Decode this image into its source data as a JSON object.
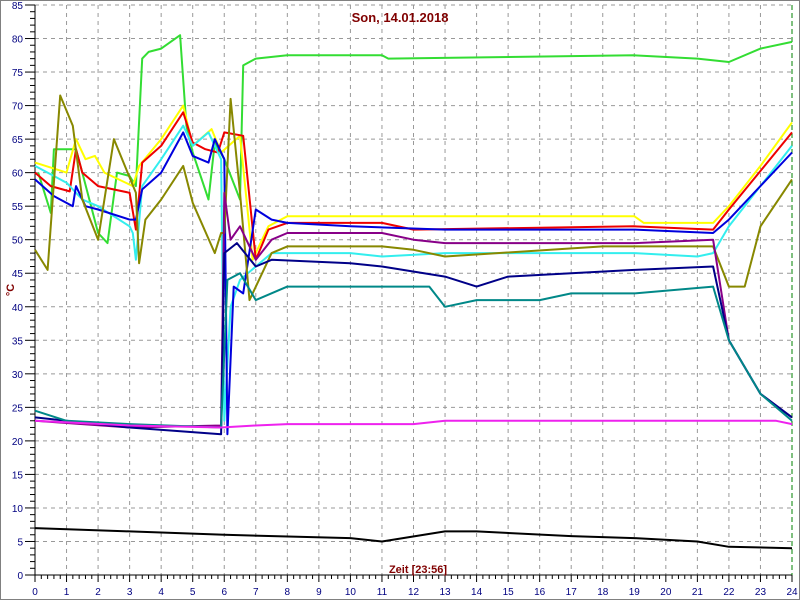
{
  "chart_data": {
    "type": "line",
    "title": "Son, 14.01.2018",
    "xlabel": "Zeit [23:56]",
    "ylabel": "°C",
    "xlim": [
      0,
      24
    ],
    "ylim": [
      0,
      85
    ],
    "xticks": [
      0,
      1,
      2,
      3,
      4,
      5,
      6,
      7,
      8,
      9,
      10,
      11,
      12,
      13,
      14,
      15,
      16,
      17,
      18,
      19,
      20,
      21,
      22,
      23,
      24
    ],
    "yticks": [
      0,
      5,
      10,
      15,
      20,
      25,
      30,
      35,
      40,
      45,
      50,
      55,
      60,
      65,
      70,
      75,
      80,
      85
    ],
    "grid": true,
    "current_time_marker": 24,
    "colors": {
      "title": "#800000",
      "tick_labels": "#000080",
      "grid": "#999999",
      "frame": "#808080",
      "marker": "#008000"
    },
    "series": [
      {
        "color": "#33dd33",
        "points": [
          [
            0.1,
            60
          ],
          [
            0.5,
            54
          ],
          [
            0.6,
            63.5
          ],
          [
            1.3,
            63.5
          ],
          [
            1.5,
            60
          ],
          [
            2,
            51
          ],
          [
            2.3,
            49.5
          ],
          [
            2.6,
            60
          ],
          [
            3.0,
            59.5
          ],
          [
            3.2,
            58
          ],
          [
            3.4,
            77
          ],
          [
            3.6,
            78
          ],
          [
            4.0,
            78.5
          ],
          [
            4.6,
            80.5
          ],
          [
            4.8,
            67
          ],
          [
            5.0,
            63
          ],
          [
            5.5,
            56
          ],
          [
            5.7,
            64.5
          ],
          [
            6.0,
            62
          ],
          [
            6.5,
            56
          ],
          [
            6.6,
            76
          ],
          [
            7.0,
            77
          ],
          [
            8,
            77.5
          ],
          [
            11,
            77.5
          ],
          [
            11.2,
            77
          ],
          [
            19,
            77.5
          ],
          [
            21,
            77
          ],
          [
            22,
            76.5
          ],
          [
            23,
            78.5
          ],
          [
            24,
            79.5
          ]
        ]
      },
      {
        "color": "#ffff00",
        "points": [
          [
            0,
            61.5
          ],
          [
            1,
            60
          ],
          [
            1.3,
            65
          ],
          [
            1.6,
            62
          ],
          [
            1.9,
            62.5
          ],
          [
            2.2,
            60
          ],
          [
            3.1,
            58
          ],
          [
            3.3,
            61
          ],
          [
            4.0,
            65
          ],
          [
            4.7,
            70
          ],
          [
            5.0,
            64
          ],
          [
            5.6,
            66.5
          ],
          [
            5.9,
            63
          ],
          [
            6.5,
            65.5
          ],
          [
            6.9,
            47
          ],
          [
            7.4,
            52
          ],
          [
            8,
            53.5
          ],
          [
            13,
            53.5
          ],
          [
            19,
            53.5
          ],
          [
            19.3,
            52.5
          ],
          [
            21.5,
            52.5
          ],
          [
            22,
            55
          ],
          [
            23,
            61
          ],
          [
            24,
            67.5
          ]
        ]
      },
      {
        "color": "#ee0000",
        "points": [
          [
            0,
            60
          ],
          [
            0.5,
            58
          ],
          [
            1.1,
            57.2
          ],
          [
            1.3,
            63.5
          ],
          [
            1.5,
            60
          ],
          [
            2,
            58
          ],
          [
            3,
            57
          ],
          [
            3.2,
            51.5
          ],
          [
            3.4,
            61.5
          ],
          [
            4,
            64
          ],
          [
            4.7,
            69
          ],
          [
            5,
            64.5
          ],
          [
            5.4,
            63.5
          ],
          [
            5.8,
            63
          ],
          [
            6,
            66
          ],
          [
            6.6,
            65.5
          ],
          [
            7.0,
            47
          ],
          [
            7.4,
            51.5
          ],
          [
            8,
            52.5
          ],
          [
            11,
            52.5
          ],
          [
            12,
            51.5
          ],
          [
            19,
            52
          ],
          [
            21.5,
            51.5
          ],
          [
            22,
            54.5
          ],
          [
            24,
            66
          ]
        ]
      },
      {
        "color": "#33eeee",
        "points": [
          [
            0,
            61
          ],
          [
            1,
            58.5
          ],
          [
            1.5,
            56
          ],
          [
            2,
            55
          ],
          [
            3,
            52
          ],
          [
            3.1,
            51
          ],
          [
            3.2,
            47
          ],
          [
            3.4,
            58
          ],
          [
            4,
            62
          ],
          [
            4.7,
            67
          ],
          [
            5,
            64
          ],
          [
            5.5,
            66
          ],
          [
            5.9,
            62
          ],
          [
            6.0,
            23
          ],
          [
            6.2,
            40
          ],
          [
            6.5,
            44
          ],
          [
            7.0,
            46
          ],
          [
            7.5,
            48
          ],
          [
            10,
            48
          ],
          [
            11,
            47.5
          ],
          [
            13,
            48
          ],
          [
            19,
            48
          ],
          [
            21,
            47.5
          ],
          [
            21.5,
            48
          ],
          [
            22,
            52
          ],
          [
            24,
            64
          ]
        ]
      },
      {
        "color": "#0000dd",
        "points": [
          [
            0,
            59
          ],
          [
            0.6,
            56.5
          ],
          [
            1.2,
            55
          ],
          [
            1.3,
            58
          ],
          [
            1.6,
            55
          ],
          [
            2,
            54.5
          ],
          [
            3,
            53
          ],
          [
            3.2,
            53
          ],
          [
            3.4,
            57.5
          ],
          [
            4,
            60
          ],
          [
            4.7,
            66
          ],
          [
            5,
            62.5
          ],
          [
            5.5,
            61.5
          ],
          [
            5.7,
            65
          ],
          [
            6.0,
            62
          ],
          [
            6.1,
            21
          ],
          [
            6.3,
            43
          ],
          [
            6.6,
            42
          ],
          [
            7.0,
            54.5
          ],
          [
            7.5,
            53
          ],
          [
            8,
            52.5
          ],
          [
            10,
            52
          ],
          [
            13,
            51.5
          ],
          [
            19,
            51.5
          ],
          [
            21.5,
            51
          ],
          [
            22,
            53
          ],
          [
            24,
            63
          ]
        ]
      },
      {
        "color": "#888800",
        "points": [
          [
            0,
            48.5
          ],
          [
            0.4,
            45.5
          ],
          [
            0.8,
            71.5
          ],
          [
            1.2,
            67
          ],
          [
            1.5,
            56
          ],
          [
            2,
            50
          ],
          [
            2.5,
            65
          ],
          [
            3.2,
            57
          ],
          [
            3.3,
            46.5
          ],
          [
            3.5,
            53
          ],
          [
            4,
            56
          ],
          [
            4.7,
            61
          ],
          [
            5,
            55.5
          ],
          [
            5.7,
            48
          ],
          [
            5.9,
            51
          ],
          [
            6.0,
            51
          ],
          [
            6.2,
            71
          ],
          [
            6.5,
            57
          ],
          [
            6.8,
            41
          ],
          [
            7.5,
            48
          ],
          [
            8,
            49
          ],
          [
            11,
            49
          ],
          [
            12,
            48.5
          ],
          [
            13,
            47.5
          ],
          [
            18,
            49
          ],
          [
            21.5,
            49
          ],
          [
            22,
            43
          ],
          [
            22.5,
            43
          ],
          [
            23,
            52
          ],
          [
            24,
            59
          ]
        ]
      },
      {
        "color": "#880088",
        "points": [
          [
            0,
            23
          ],
          [
            3,
            22
          ],
          [
            5.9,
            22.3
          ],
          [
            6.0,
            57
          ],
          [
            6.2,
            50
          ],
          [
            6.5,
            52
          ],
          [
            7.0,
            47
          ],
          [
            7.5,
            50
          ],
          [
            8,
            51
          ],
          [
            11,
            51
          ],
          [
            12,
            50
          ],
          [
            13,
            49.5
          ],
          [
            19,
            49.5
          ],
          [
            21.5,
            50
          ],
          [
            22,
            35
          ],
          [
            23,
            27
          ],
          [
            24,
            23.5
          ]
        ]
      },
      {
        "color": "#000088",
        "points": [
          [
            0,
            23.5
          ],
          [
            3,
            22
          ],
          [
            5.9,
            21
          ],
          [
            6.0,
            48
          ],
          [
            6.4,
            49.5
          ],
          [
            7.0,
            46
          ],
          [
            7.5,
            47
          ],
          [
            10,
            46.5
          ],
          [
            11,
            46
          ],
          [
            13,
            44.5
          ],
          [
            14,
            43
          ],
          [
            15,
            44.5
          ],
          [
            19,
            45.5
          ],
          [
            21.5,
            46
          ],
          [
            22,
            35
          ],
          [
            23,
            27
          ],
          [
            24,
            23.5
          ]
        ]
      },
      {
        "color": "#008888",
        "points": [
          [
            0,
            24.5
          ],
          [
            1,
            23
          ],
          [
            3,
            22.5
          ],
          [
            5.9,
            22
          ],
          [
            6.1,
            44
          ],
          [
            6.5,
            45
          ],
          [
            7,
            41
          ],
          [
            8,
            43
          ],
          [
            10,
            43
          ],
          [
            12.5,
            43
          ],
          [
            13,
            40
          ],
          [
            14,
            41
          ],
          [
            16,
            41
          ],
          [
            17,
            42
          ],
          [
            19,
            42
          ],
          [
            21.5,
            43
          ],
          [
            22,
            35
          ],
          [
            23,
            27
          ],
          [
            24,
            23
          ]
        ]
      },
      {
        "color": "#ee22ee",
        "points": [
          [
            0,
            23
          ],
          [
            3,
            22.3
          ],
          [
            5.9,
            22
          ],
          [
            7,
            22.3
          ],
          [
            8,
            22.5
          ],
          [
            12,
            22.5
          ],
          [
            13,
            23
          ],
          [
            21,
            23
          ],
          [
            23.5,
            23
          ],
          [
            24,
            22.5
          ]
        ]
      },
      {
        "color": "#000000",
        "points": [
          [
            0,
            7
          ],
          [
            3,
            6.5
          ],
          [
            6,
            6
          ],
          [
            10,
            5.5
          ],
          [
            11,
            5
          ],
          [
            13,
            6.5
          ],
          [
            14,
            6.5
          ],
          [
            17,
            5.8
          ],
          [
            19,
            5.5
          ],
          [
            21,
            5
          ],
          [
            22,
            4.2
          ],
          [
            24,
            4
          ]
        ]
      }
    ]
  }
}
